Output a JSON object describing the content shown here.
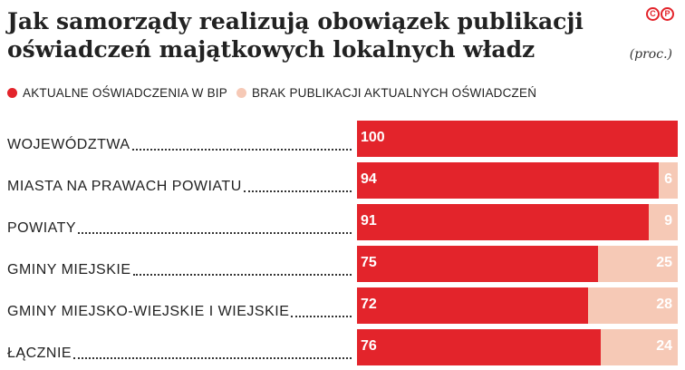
{
  "title_line1": "Jak samorządy realizują obowiązek publikacji",
  "title_line2": "oświadczeń majątkowych lokalnych władz",
  "unit": "(proc.)",
  "logo_letters": [
    "C",
    "P"
  ],
  "colors": {
    "published": "#e3242b",
    "not_published": "#f6c9b6",
    "logo": "#e3242b"
  },
  "chart_data": {
    "type": "bar",
    "orientation": "horizontal",
    "stacked": true,
    "title": "Jak samorządy realizują obowiązek publikacji oświadczeń majątkowych lokalnych władz",
    "unit": "(proc.)",
    "legend_position": "top-left",
    "categories": [
      "WOJEWÓDZTWA",
      "MIASTA NA PRAWACH POWIATU",
      "POWIATY",
      "GMINY MIEJSKIE",
      "GMINY MIEJSKO-WIEJSKIE I WIEJSKIE",
      "ŁĄCZNIE"
    ],
    "series": [
      {
        "name": "AKTUALNE OŚWIADCZENIA W BIP",
        "values": [
          100,
          94,
          91,
          75,
          72,
          76
        ]
      },
      {
        "name": "BRAK PUBLIKACJI AKTUALNYCH OŚWIADCZEŃ",
        "values": [
          null,
          6,
          9,
          25,
          28,
          24
        ]
      }
    ],
    "xlim": [
      0,
      100
    ]
  }
}
